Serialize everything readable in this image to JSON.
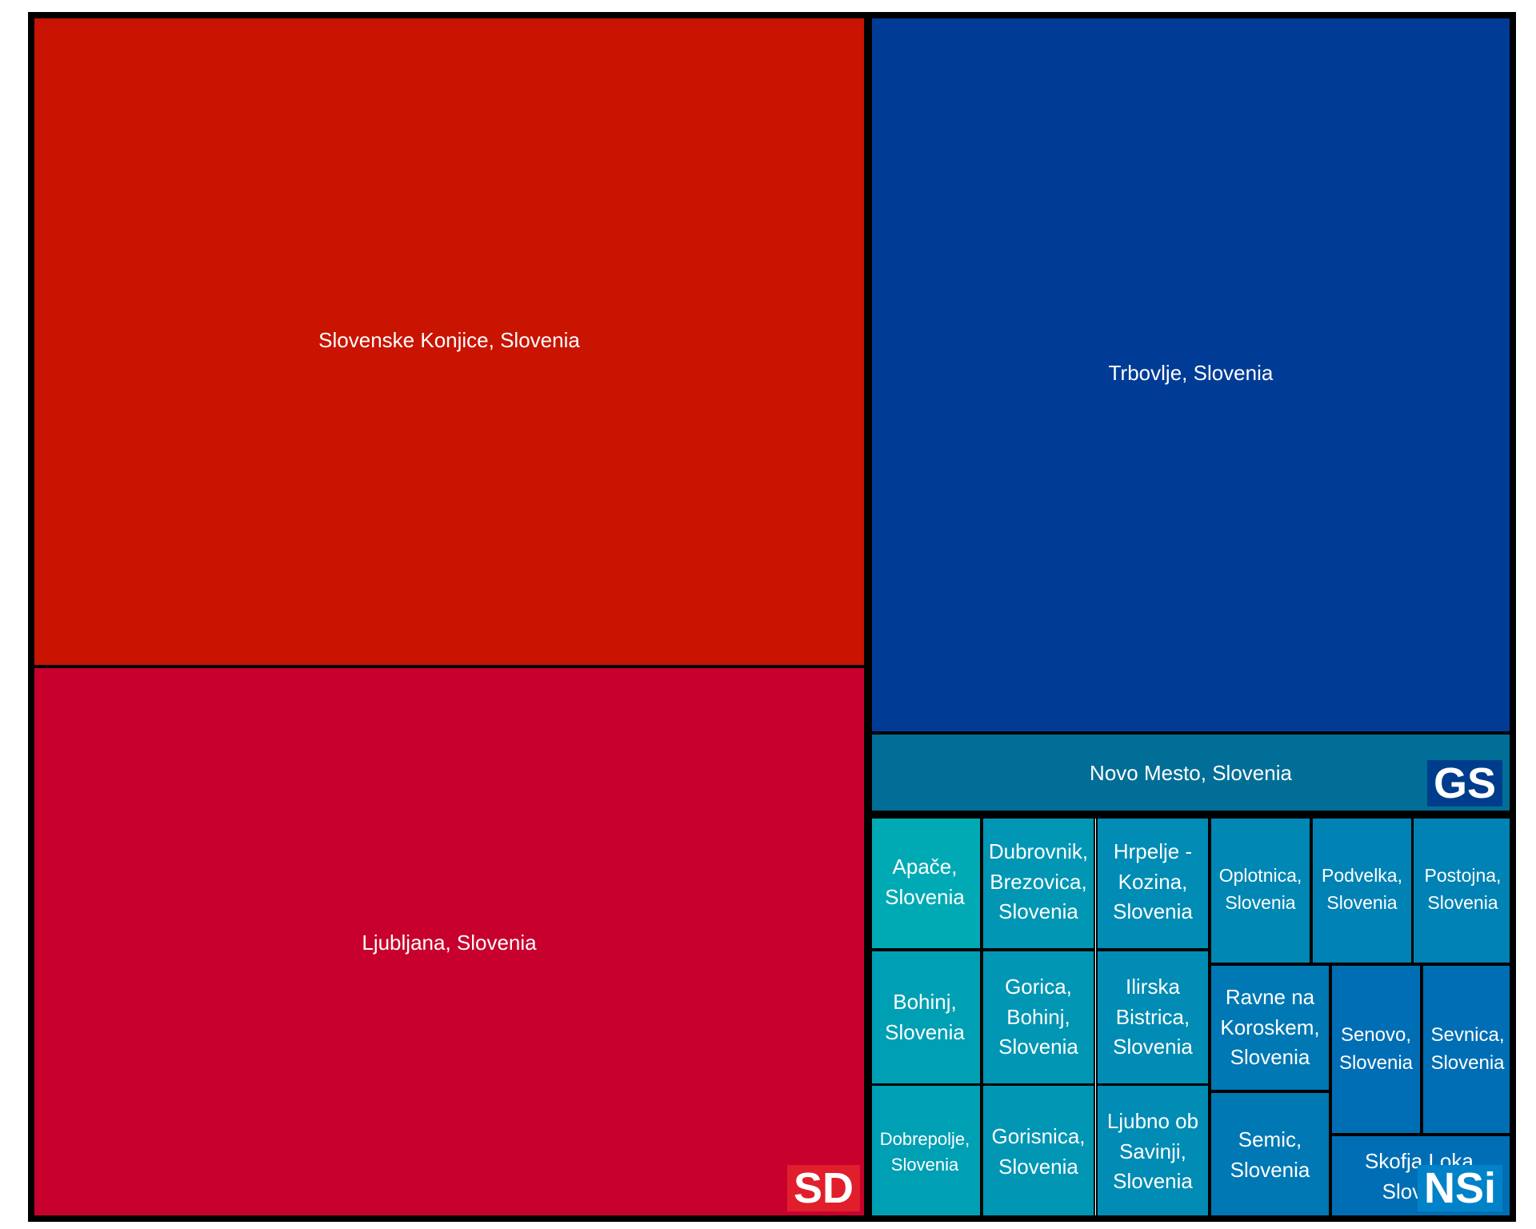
{
  "chart_data": {
    "type": "treemap",
    "groups": [
      {
        "name": "SD",
        "label_color": "#e11e2b",
        "items": [
          {
            "name": "Slovenske Konjice, Slovenia",
            "label": "Slovenske Konjice, Slovenia",
            "value": 562,
            "color": "#c81400"
          },
          {
            "name": "Ljubljana, Slovenia",
            "label": "Ljubljana, Slovenia",
            "value": 476,
            "color": "#c8002d"
          }
        ]
      },
      {
        "name": "GS",
        "label_color": "#003c8c",
        "items": [
          {
            "name": "Trbovlje, Slovenia",
            "label": "Trbovlje, Slovenia",
            "value": 476,
            "color": "#003c96"
          },
          {
            "name": "Novo Mesto, Slovenia",
            "label": "Novo Mesto, Slovenia",
            "value": 54,
            "color": "#006e96"
          }
        ]
      },
      {
        "name": "NSi",
        "label_color": "#0082c8",
        "items": [
          {
            "name": "Apače, Slovenia",
            "label": "Apače,\nSlovenia",
            "value": 15,
            "color": "#00aab4"
          },
          {
            "name": "Bohinj, Slovenia",
            "label": "Bohinj,\nSlovenia",
            "value": 15,
            "color": "#00a0b4"
          },
          {
            "name": "Dobrepolje, Slovenia",
            "label": "Dobrepolje,\nSlovenia",
            "value": 15,
            "color": "#00a0b4"
          },
          {
            "name": "Dubrovnik, Brezovica, Slovenia",
            "label": "Dubrovnik,\nBrezovica,\nSlovenia",
            "value": 15,
            "color": "#0096b4"
          },
          {
            "name": "Gorica, Bohinj, Slovenia",
            "label": "Gorica,\nBohinj,\nSlovenia",
            "value": 15,
            "color": "#0096b4"
          },
          {
            "name": "Gorisnica, Slovenia",
            "label": "Gorisnica,\nSlovenia",
            "value": 15,
            "color": "#0096b4"
          },
          {
            "name": "Hrpelje - Kozina, Slovenia",
            "label": "Hrpelje -\nKozina,\nSlovenia",
            "value": 15,
            "color": "#008cb4"
          },
          {
            "name": "Ilirska Bistrica, Slovenia",
            "label": "Ilirska\nBistrica,\nSlovenia",
            "value": 15,
            "color": "#008cb4"
          },
          {
            "name": "Ljubno ob Savinji, Slovenia",
            "label": "Ljubno ob\nSavinji,\nSlovenia",
            "value": 15,
            "color": "#008cb4"
          },
          {
            "name": "Oplotnica, Slovenia",
            "label": "Oplotnica,\nSlovenia",
            "value": 10,
            "color": "#0087b4"
          },
          {
            "name": "Podvelka, Slovenia",
            "label": "Podvelka,\nSlovenia",
            "value": 10,
            "color": "#0082b4"
          },
          {
            "name": "Postojna, Slovenia",
            "label": "Postojna,\nSlovenia",
            "value": 10,
            "color": "#0082b4"
          },
          {
            "name": "Ravne na Koroskem, Slovenia",
            "label": "Ravne na\nKoroskem,\nSlovenia",
            "value": 10,
            "color": "#0078b4"
          },
          {
            "name": "Semic, Slovenia",
            "label": "Semic,\nSlovenia",
            "value": 10,
            "color": "#0078b4"
          },
          {
            "name": "Senovo, Slovenia",
            "label": "Senovo,\nSlovenia",
            "value": 10,
            "color": "#006eb4"
          },
          {
            "name": "Sevnica, Slovenia",
            "label": "Sevnica,\nSlovenia",
            "value": 10,
            "color": "#006eb4"
          },
          {
            "name": "Skofja Loka, Slovenia",
            "label": "Skofja Loka,\nSlovenia",
            "value": 10,
            "color": "#006eb4"
          }
        ]
      }
    ]
  }
}
